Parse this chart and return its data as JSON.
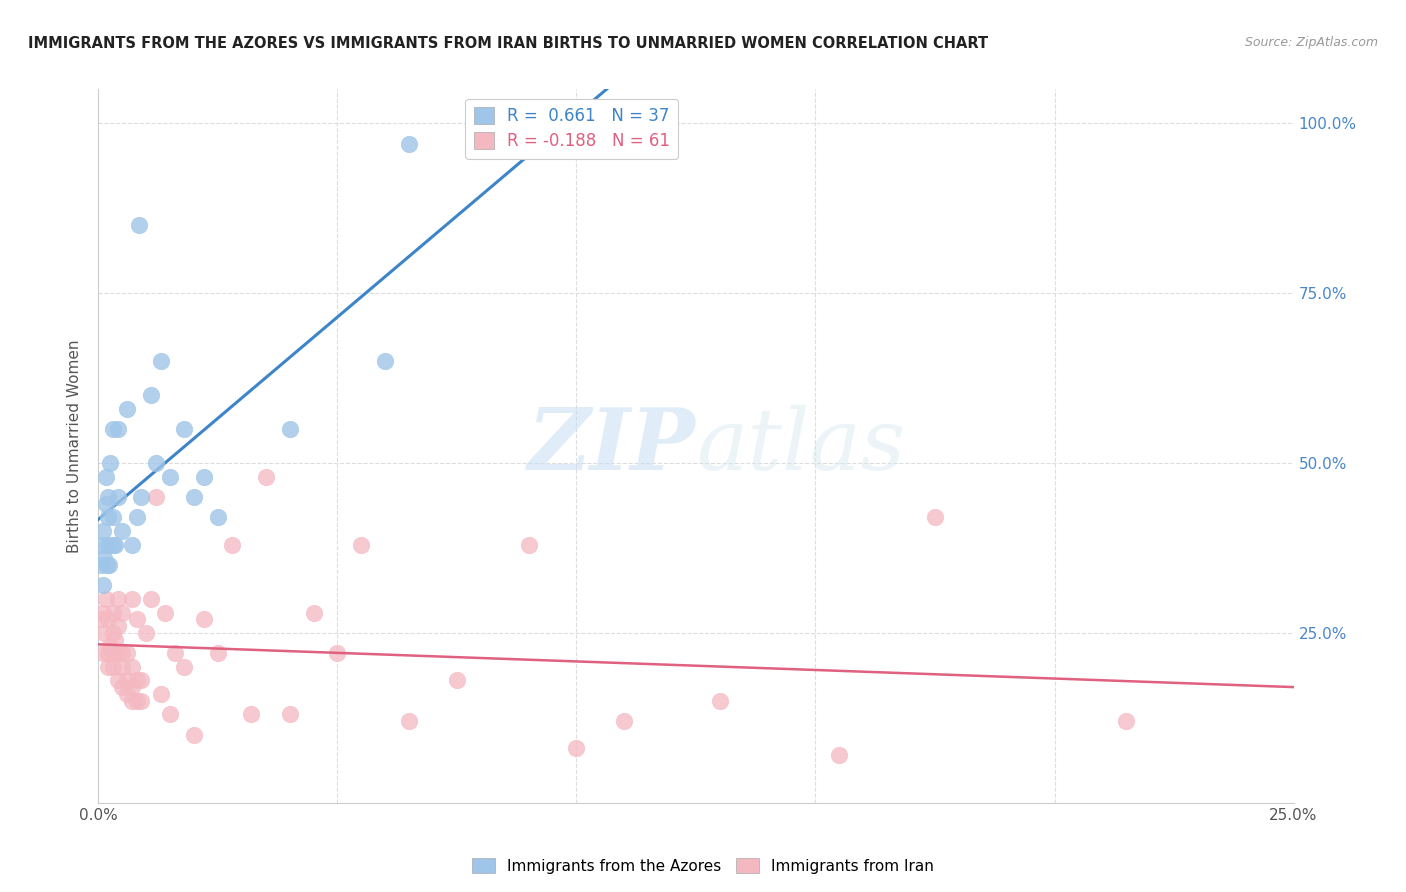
{
  "title": "IMMIGRANTS FROM THE AZORES VS IMMIGRANTS FROM IRAN BIRTHS TO UNMARRIED WOMEN CORRELATION CHART",
  "source": "Source: ZipAtlas.com",
  "ylabel": "Births to Unmarried Women",
  "xlim": [
    0.0,
    0.25
  ],
  "ylim": [
    0.0,
    1.05
  ],
  "xticks": [
    0.0,
    0.05,
    0.1,
    0.15,
    0.2,
    0.25
  ],
  "yticks": [
    0.0,
    0.25,
    0.5,
    0.75,
    1.0
  ],
  "xticklabels": [
    "0.0%",
    "",
    "",
    "",
    "",
    "25.0%"
  ],
  "yticklabels_right": [
    "",
    "25.0%",
    "50.0%",
    "75.0%",
    "100.0%"
  ],
  "R_azores": 0.661,
  "N_azores": 37,
  "R_iran": -0.188,
  "N_iran": 61,
  "azores_color": "#9fc5e8",
  "iran_color": "#f4b8c1",
  "azores_line_color": "#3d85c8",
  "iran_line_color": "#e06080",
  "legend_label_azores": "Immigrants from the Azores",
  "legend_label_iran": "Immigrants from Iran",
  "watermark_zip": "ZIP",
  "watermark_atlas": "atlas",
  "azores_x": [
    0.0005,
    0.0008,
    0.001,
    0.001,
    0.0012,
    0.0015,
    0.0015,
    0.0018,
    0.002,
    0.002,
    0.002,
    0.0022,
    0.0025,
    0.003,
    0.003,
    0.003,
    0.0035,
    0.004,
    0.004,
    0.005,
    0.006,
    0.007,
    0.008,
    0.0085,
    0.009,
    0.011,
    0.012,
    0.013,
    0.015,
    0.018,
    0.02,
    0.022,
    0.025,
    0.04,
    0.06,
    0.065,
    0.09
  ],
  "azores_y": [
    0.35,
    0.38,
    0.32,
    0.4,
    0.36,
    0.44,
    0.48,
    0.35,
    0.38,
    0.42,
    0.45,
    0.35,
    0.5,
    0.38,
    0.42,
    0.55,
    0.38,
    0.45,
    0.55,
    0.4,
    0.58,
    0.38,
    0.42,
    0.85,
    0.45,
    0.6,
    0.5,
    0.65,
    0.48,
    0.55,
    0.45,
    0.48,
    0.42,
    0.55,
    0.65,
    0.97,
    0.97
  ],
  "iran_x": [
    0.0005,
    0.001,
    0.001,
    0.0012,
    0.0015,
    0.002,
    0.002,
    0.002,
    0.0025,
    0.003,
    0.003,
    0.003,
    0.003,
    0.0035,
    0.004,
    0.004,
    0.004,
    0.004,
    0.005,
    0.005,
    0.005,
    0.005,
    0.006,
    0.006,
    0.006,
    0.007,
    0.007,
    0.007,
    0.007,
    0.008,
    0.008,
    0.008,
    0.009,
    0.009,
    0.01,
    0.011,
    0.012,
    0.013,
    0.014,
    0.015,
    0.016,
    0.018,
    0.02,
    0.022,
    0.025,
    0.028,
    0.032,
    0.035,
    0.04,
    0.045,
    0.05,
    0.055,
    0.065,
    0.075,
    0.09,
    0.1,
    0.11,
    0.13,
    0.155,
    0.175,
    0.215
  ],
  "iran_y": [
    0.27,
    0.22,
    0.28,
    0.25,
    0.3,
    0.2,
    0.22,
    0.27,
    0.23,
    0.2,
    0.22,
    0.25,
    0.28,
    0.24,
    0.18,
    0.22,
    0.26,
    0.3,
    0.17,
    0.2,
    0.22,
    0.28,
    0.16,
    0.18,
    0.22,
    0.15,
    0.17,
    0.2,
    0.3,
    0.15,
    0.18,
    0.27,
    0.15,
    0.18,
    0.25,
    0.3,
    0.45,
    0.16,
    0.28,
    0.13,
    0.22,
    0.2,
    0.1,
    0.27,
    0.22,
    0.38,
    0.13,
    0.48,
    0.13,
    0.28,
    0.22,
    0.38,
    0.12,
    0.18,
    0.38,
    0.08,
    0.12,
    0.15,
    0.07,
    0.42,
    0.12
  ]
}
